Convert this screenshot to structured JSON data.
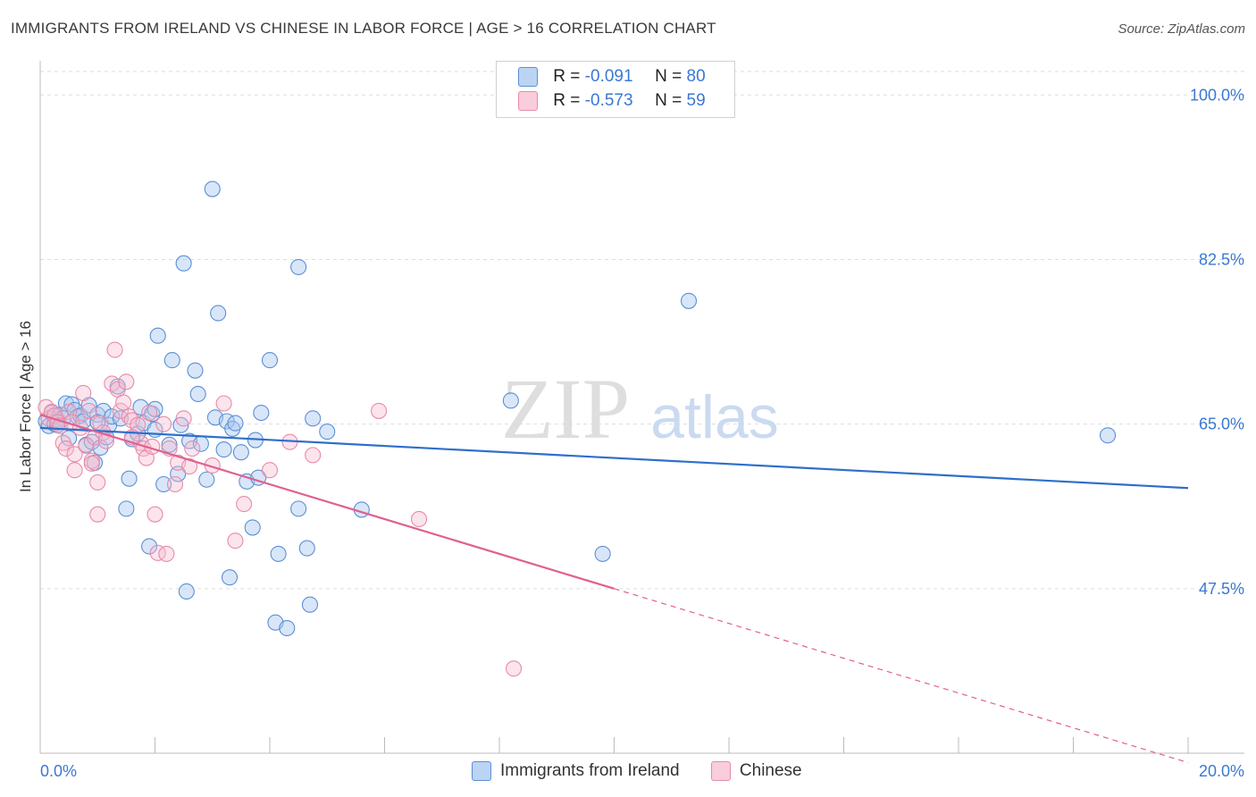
{
  "header": {
    "title": "IMMIGRANTS FROM IRELAND VS CHINESE IN LABOR FORCE | AGE > 16 CORRELATION CHART",
    "source": "Source: ZipAtlas.com"
  },
  "legend": {
    "series1": {
      "r_label": "R =",
      "r_value": "-0.091",
      "n_label": "N =",
      "n_value": "80"
    },
    "series2": {
      "r_label": "R =",
      "r_value": "-0.573",
      "n_label": "N =",
      "n_value": "59"
    }
  },
  "watermark": {
    "zip": "ZIP",
    "atlas": "atlas"
  },
  "colors": {
    "blue_fill": "#a9c8f0",
    "blue_stroke": "#5b8fd6",
    "blue_line": "#2f6fca",
    "pink_fill": "#f6bcd0",
    "pink_stroke": "#e88aa9",
    "pink_line": "#e0608e",
    "axis_text": "#3a78d4",
    "grid": "#dddddd"
  },
  "chart_data": {
    "type": "scatter",
    "title": "IMMIGRANTS FROM IRELAND VS CHINESE IN LABOR FORCE | AGE > 16 CORRELATION CHART",
    "xlabel": "",
    "ylabel": "In Labor Force | Age > 16",
    "xlim": [
      0,
      20
    ],
    "ylim": [
      30,
      102.5
    ],
    "x_tick_labels": [
      "0.0%",
      "20.0%"
    ],
    "y_ticks": [
      47.5,
      65.0,
      82.5,
      100.0
    ],
    "y_tick_labels": [
      "47.5%",
      "65.0%",
      "82.5%",
      "100.0%"
    ],
    "grid": true,
    "legend_position": "top-center",
    "series": [
      {
        "name": "Immigrants from Ireland",
        "r": -0.091,
        "n": 80,
        "trend": {
          "x": [
            0,
            20
          ],
          "y": [
            64.6,
            58.2
          ],
          "dashed_after": null
        },
        "points": [
          [
            0.1,
            65.3
          ],
          [
            0.15,
            64.8
          ],
          [
            0.2,
            66.2
          ],
          [
            0.25,
            65.0
          ],
          [
            0.3,
            65.5
          ],
          [
            0.35,
            66.0
          ],
          [
            0.4,
            65.6
          ],
          [
            0.45,
            67.2
          ],
          [
            0.5,
            63.5
          ],
          [
            0.55,
            67.1
          ],
          [
            0.6,
            66.5
          ],
          [
            0.65,
            65.8
          ],
          [
            0.7,
            65.9
          ],
          [
            0.75,
            65.3
          ],
          [
            0.8,
            62.8
          ],
          [
            0.85,
            67.0
          ],
          [
            0.9,
            63.1
          ],
          [
            0.95,
            60.9
          ],
          [
            1.0,
            66.0
          ],
          [
            1.05,
            62.5
          ],
          [
            1.1,
            66.4
          ],
          [
            1.15,
            63.6
          ],
          [
            1.2,
            64.9
          ],
          [
            1.25,
            65.8
          ],
          [
            1.35,
            69.0
          ],
          [
            1.4,
            65.6
          ],
          [
            1.5,
            56.0
          ],
          [
            1.55,
            59.2
          ],
          [
            1.6,
            63.4
          ],
          [
            1.7,
            64.0
          ],
          [
            1.75,
            66.8
          ],
          [
            1.8,
            65.1
          ],
          [
            1.9,
            52.0
          ],
          [
            1.95,
            66.1
          ],
          [
            2.0,
            66.6
          ],
          [
            2.05,
            74.4
          ],
          [
            2.15,
            58.6
          ],
          [
            2.25,
            62.8
          ],
          [
            2.3,
            71.8
          ],
          [
            2.4,
            59.7
          ],
          [
            2.45,
            64.9
          ],
          [
            2.5,
            82.1
          ],
          [
            2.55,
            47.2
          ],
          [
            2.6,
            63.2
          ],
          [
            2.7,
            70.7
          ],
          [
            2.75,
            68.2
          ],
          [
            2.8,
            62.9
          ],
          [
            2.9,
            59.1
          ],
          [
            3.0,
            90.0
          ],
          [
            3.05,
            65.7
          ],
          [
            3.1,
            76.8
          ],
          [
            3.2,
            62.3
          ],
          [
            3.25,
            65.3
          ],
          [
            3.3,
            48.7
          ],
          [
            3.35,
            64.5
          ],
          [
            3.4,
            65.1
          ],
          [
            3.5,
            62.0
          ],
          [
            3.6,
            58.9
          ],
          [
            3.7,
            54.0
          ],
          [
            3.75,
            63.3
          ],
          [
            3.8,
            59.3
          ],
          [
            3.85,
            66.2
          ],
          [
            4.0,
            71.8
          ],
          [
            4.1,
            43.9
          ],
          [
            4.15,
            51.2
          ],
          [
            4.3,
            43.3
          ],
          [
            4.5,
            56.0
          ],
          [
            4.5,
            81.7
          ],
          [
            4.65,
            51.8
          ],
          [
            4.7,
            45.8
          ],
          [
            4.75,
            65.6
          ],
          [
            5.0,
            64.2
          ],
          [
            5.6,
            55.9
          ],
          [
            8.2,
            67.5
          ],
          [
            9.8,
            51.2
          ],
          [
            11.3,
            78.1
          ],
          [
            18.6,
            63.8
          ],
          [
            0.3,
            64.9
          ],
          [
            1.0,
            65.2
          ],
          [
            2.0,
            64.4
          ]
        ]
      },
      {
        "name": "Chinese",
        "r": -0.573,
        "n": 59,
        "trend": {
          "x": [
            0,
            20
          ],
          "y": [
            66.0,
            29.0
          ],
          "dashed_after": 10.0
        },
        "points": [
          [
            0.1,
            66.8
          ],
          [
            0.15,
            65.6
          ],
          [
            0.2,
            66.3
          ],
          [
            0.25,
            65.9
          ],
          [
            0.3,
            65.2
          ],
          [
            0.35,
            64.8
          ],
          [
            0.4,
            63.0
          ],
          [
            0.45,
            62.4
          ],
          [
            0.5,
            66.3
          ],
          [
            0.55,
            65.2
          ],
          [
            0.6,
            61.8
          ],
          [
            0.6,
            60.1
          ],
          [
            0.7,
            64.6
          ],
          [
            0.75,
            68.3
          ],
          [
            0.8,
            62.7
          ],
          [
            0.85,
            66.4
          ],
          [
            0.9,
            61.1
          ],
          [
            0.95,
            63.6
          ],
          [
            1.0,
            58.8
          ],
          [
            1.0,
            55.4
          ],
          [
            1.05,
            65.1
          ],
          [
            1.1,
            64.1
          ],
          [
            1.15,
            63.2
          ],
          [
            1.25,
            69.3
          ],
          [
            1.3,
            72.9
          ],
          [
            1.35,
            68.7
          ],
          [
            1.4,
            66.4
          ],
          [
            1.45,
            67.3
          ],
          [
            1.5,
            69.5
          ],
          [
            1.55,
            65.8
          ],
          [
            1.6,
            65.4
          ],
          [
            1.7,
            64.9
          ],
          [
            1.75,
            63.0
          ],
          [
            1.8,
            62.4
          ],
          [
            1.85,
            61.4
          ],
          [
            1.9,
            66.2
          ],
          [
            1.95,
            62.6
          ],
          [
            2.0,
            55.4
          ],
          [
            2.05,
            51.3
          ],
          [
            2.2,
            51.2
          ],
          [
            2.25,
            62.4
          ],
          [
            2.35,
            58.6
          ],
          [
            2.4,
            60.9
          ],
          [
            2.5,
            65.6
          ],
          [
            2.6,
            60.5
          ],
          [
            2.65,
            62.4
          ],
          [
            3.0,
            60.6
          ],
          [
            3.2,
            67.2
          ],
          [
            3.4,
            52.6
          ],
          [
            3.55,
            56.5
          ],
          [
            4.0,
            60.1
          ],
          [
            4.35,
            63.1
          ],
          [
            4.75,
            61.7
          ],
          [
            5.9,
            66.4
          ],
          [
            6.6,
            54.9
          ],
          [
            8.25,
            39.0
          ],
          [
            0.9,
            60.8
          ],
          [
            1.6,
            63.6
          ],
          [
            2.15,
            65.0
          ]
        ]
      }
    ]
  },
  "bottom_legend": {
    "item1": "Immigrants from Ireland",
    "item2": "Chinese"
  }
}
